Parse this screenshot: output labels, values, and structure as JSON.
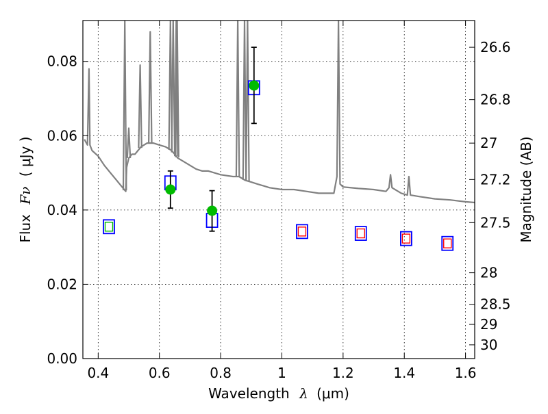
{
  "chart_data": {
    "type": "scatter",
    "xlabel_prefix": "Wavelength",
    "xlabel_symbol": "λ",
    "xlabel_unit": "(μm)",
    "ylabel_prefix": "Flux",
    "ylabel_symbol": "Fν",
    "ylabel_unit": "( μJy )",
    "y2label": "Magnitude (AB)",
    "xlim": [
      0.35,
      1.63
    ],
    "ylim": [
      0.0,
      0.091
    ],
    "grid": true,
    "x_ticks": [
      0.4,
      0.6,
      0.8,
      1.0,
      1.2,
      1.4,
      1.6
    ],
    "x_tick_labels": [
      "0.4",
      "0.6",
      "0.8",
      "1",
      "1.2",
      "1.4",
      "1.6"
    ],
    "y_ticks": [
      0.0,
      0.02,
      0.04,
      0.06,
      0.08
    ],
    "y_tick_labels": [
      "0.00",
      "0.02",
      "0.04",
      "0.06",
      "0.08"
    ],
    "y2_ticks": [
      {
        "label": "26.6",
        "flux": 0.0838
      },
      {
        "label": "26.8",
        "flux": 0.0697
      },
      {
        "label": "27",
        "flux": 0.058
      },
      {
        "label": "27.2",
        "flux": 0.0482
      },
      {
        "label": "27.5",
        "flux": 0.0366
      },
      {
        "label": "28",
        "flux": 0.0231
      },
      {
        "label": "28.5",
        "flux": 0.0146
      },
      {
        "label": "29",
        "flux": 0.0092
      },
      {
        "label": "30",
        "flux": 0.0037
      }
    ],
    "colors": {
      "template": "#808080",
      "observed": "#00bb00",
      "model_box": "#0000ff",
      "inner_green": "#00bb00",
      "inner_red": "#ff0000",
      "errorbar": "#000000"
    },
    "series": [
      {
        "role": "template",
        "points": [
          [
            0.355,
            0.059
          ],
          [
            0.365,
            0.0575
          ],
          [
            0.37,
            0.078
          ],
          [
            0.373,
            0.0575
          ],
          [
            0.38,
            0.056
          ],
          [
            0.4,
            0.0545
          ],
          [
            0.42,
            0.052
          ],
          [
            0.44,
            0.05
          ],
          [
            0.46,
            0.048
          ],
          [
            0.48,
            0.046
          ],
          [
            0.49,
            0.045
          ],
          [
            0.493,
            0.0515
          ],
          [
            0.5,
            0.054
          ],
          [
            0.51,
            0.055
          ],
          [
            0.52,
            0.055
          ],
          [
            0.53,
            0.056
          ],
          [
            0.54,
            0.057
          ],
          [
            0.56,
            0.058
          ],
          [
            0.58,
            0.058
          ],
          [
            0.6,
            0.0575
          ],
          [
            0.62,
            0.057
          ],
          [
            0.64,
            0.056
          ],
          [
            0.66,
            0.054
          ],
          [
            0.68,
            0.053
          ],
          [
            0.7,
            0.052
          ],
          [
            0.72,
            0.051
          ],
          [
            0.74,
            0.0505
          ],
          [
            0.76,
            0.0505
          ],
          [
            0.8,
            0.0495
          ],
          [
            0.84,
            0.049
          ],
          [
            0.86,
            0.049
          ],
          [
            0.88,
            0.048
          ],
          [
            0.9,
            0.0475
          ],
          [
            0.92,
            0.047
          ],
          [
            0.94,
            0.0465
          ],
          [
            0.96,
            0.046
          ],
          [
            1.0,
            0.0455
          ],
          [
            1.04,
            0.0455
          ],
          [
            1.08,
            0.045
          ],
          [
            1.12,
            0.0445
          ],
          [
            1.15,
            0.0445
          ],
          [
            1.17,
            0.0445
          ],
          [
            1.18,
            0.049
          ],
          [
            1.185,
            0.092
          ],
          [
            1.19,
            0.047
          ],
          [
            1.2,
            0.0462
          ],
          [
            1.25,
            0.0458
          ],
          [
            1.3,
            0.0455
          ],
          [
            1.34,
            0.045
          ],
          [
            1.35,
            0.046
          ],
          [
            1.355,
            0.0495
          ],
          [
            1.36,
            0.046
          ],
          [
            1.39,
            0.0445
          ],
          [
            1.41,
            0.044
          ],
          [
            1.415,
            0.049
          ],
          [
            1.42,
            0.044
          ],
          [
            1.45,
            0.0436
          ],
          [
            1.5,
            0.043
          ],
          [
            1.55,
            0.0427
          ],
          [
            1.6,
            0.0422
          ],
          [
            1.63,
            0.042
          ]
        ],
        "spikes": [
          {
            "x": 0.487,
            "peak": 0.092
          },
          {
            "x": 0.5,
            "peak": 0.062
          },
          {
            "x": 0.537,
            "peak": 0.079
          },
          {
            "x": 0.57,
            "peak": 0.088
          },
          {
            "x": 0.636,
            "peak": 0.092
          },
          {
            "x": 0.645,
            "peak": 0.092
          },
          {
            "x": 0.655,
            "peak": 0.092
          },
          {
            "x": 0.658,
            "peak": 0.092
          },
          {
            "x": 0.856,
            "peak": 0.092
          },
          {
            "x": 0.878,
            "peak": 0.092
          },
          {
            "x": 0.888,
            "peak": 0.092
          }
        ]
      },
      {
        "role": "observed",
        "points": [
          {
            "x": 0.636,
            "y": 0.0455,
            "yerr_low": 0.0405,
            "yerr_high": 0.0505
          },
          {
            "x": 0.772,
            "y": 0.0398,
            "yerr_low": 0.0343,
            "yerr_high": 0.0452
          },
          {
            "x": 0.909,
            "y": 0.0735,
            "yerr_low": 0.0633,
            "yerr_high": 0.0838
          }
        ]
      },
      {
        "role": "model",
        "points": [
          {
            "x": 0.435,
            "y": 0.0355,
            "inner": "green"
          },
          {
            "x": 0.636,
            "y": 0.0473,
            "inner": "none"
          },
          {
            "x": 0.772,
            "y": 0.0372,
            "inner": "none"
          },
          {
            "x": 0.909,
            "y": 0.0729,
            "inner": "none"
          },
          {
            "x": 1.066,
            "y": 0.0342,
            "inner": "red"
          },
          {
            "x": 1.258,
            "y": 0.0337,
            "inner": "red"
          },
          {
            "x": 1.406,
            "y": 0.0323,
            "inner": "red"
          },
          {
            "x": 1.541,
            "y": 0.031,
            "inner": "red"
          }
        ]
      }
    ]
  }
}
